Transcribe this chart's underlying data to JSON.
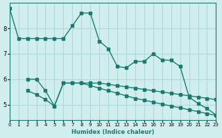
{
  "xlabel": "Humidex (Indice chaleur)",
  "ylabel": "",
  "bg_color": "#d0eeee",
  "grid_color": "#b0d8d8",
  "line_color": "#1a7a6e",
  "xlim": [
    0,
    23
  ],
  "ylim": [
    4.4,
    9.0
  ],
  "yticks": [
    5,
    6,
    7,
    8
  ],
  "xticks": [
    0,
    1,
    2,
    3,
    4,
    5,
    6,
    7,
    8,
    9,
    10,
    11,
    12,
    13,
    14,
    15,
    16,
    17,
    18,
    19,
    20,
    21,
    22,
    23
  ],
  "line1_x": [
    0,
    1,
    2,
    3,
    4,
    5,
    6,
    7,
    8,
    9,
    10,
    11,
    12,
    13,
    14,
    15,
    16,
    17,
    18,
    19,
    20,
    21,
    22,
    23
  ],
  "line1_y": [
    8.8,
    7.6,
    7.6,
    7.6,
    7.6,
    7.6,
    7.6,
    8.1,
    8.6,
    8.6,
    7.5,
    7.2,
    6.5,
    6.45,
    6.7,
    6.7,
    7.0,
    6.75,
    6.75,
    6.5,
    5.3,
    5.05,
    4.85,
    4.6
  ],
  "line2_x": [
    2,
    3,
    4,
    5,
    6,
    7,
    8,
    9,
    10,
    11,
    12,
    13,
    14,
    15,
    16,
    17,
    18,
    19,
    20,
    21,
    22,
    23
  ],
  "line2_y": [
    6.0,
    6.0,
    5.55,
    4.95,
    5.85,
    5.85,
    5.85,
    5.85,
    5.85,
    5.8,
    5.75,
    5.7,
    5.65,
    5.6,
    5.55,
    5.5,
    5.45,
    5.4,
    5.35,
    5.3,
    5.25,
    5.2
  ],
  "line3_x": [
    2,
    3,
    4,
    5,
    6,
    7,
    8,
    9,
    10,
    11,
    12,
    13,
    14,
    15,
    16,
    17,
    18,
    19,
    20,
    21,
    22,
    23
  ],
  "line3_y": [
    5.55,
    5.4,
    5.2,
    4.95,
    5.85,
    5.85,
    5.85,
    5.75,
    5.65,
    5.55,
    5.45,
    5.35,
    5.25,
    5.18,
    5.1,
    5.02,
    4.95,
    4.88,
    4.8,
    4.73,
    4.65,
    4.58
  ]
}
